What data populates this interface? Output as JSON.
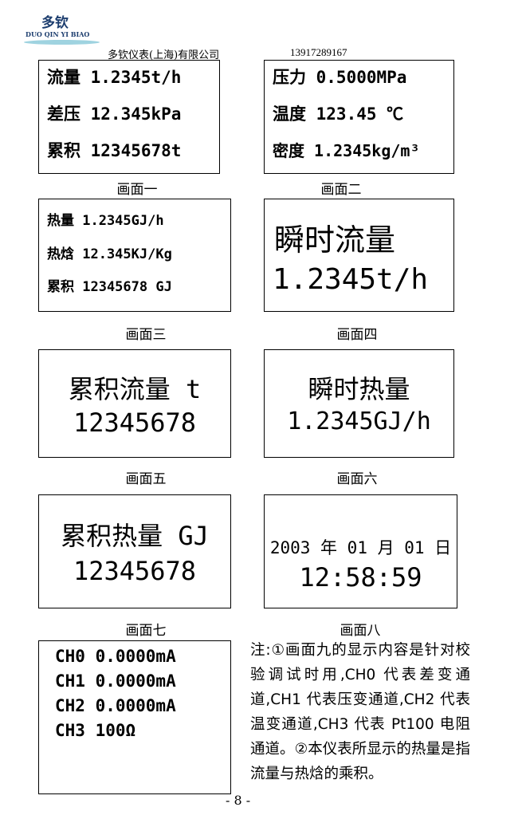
{
  "header": {
    "logo_cn": "多钦",
    "logo_en": "DUO QIN YI BIAO",
    "company": "多钦仪表(上海)有限公司",
    "phone": "13917289167"
  },
  "screens": [
    {
      "caption": "画面一",
      "lines": [
        "流量 1.2345t/h",
        "差压 12.345kPa",
        "累积 12345678t"
      ]
    },
    {
      "caption": "画面二",
      "lines": [
        "压力 0.5000MPa",
        "温度 123.45 ℃",
        "密度 1.2345kg/m³"
      ]
    },
    {
      "caption": "画面三",
      "lines": [
        "热量 1.2345GJ/h",
        "热焓 12.345KJ/Kg",
        "累积 12345678 GJ"
      ]
    },
    {
      "caption": "画面四",
      "lines": [
        "瞬时流量",
        "1.2345t/h"
      ]
    },
    {
      "caption": "画面五",
      "lines": [
        "累积流量 t",
        "12345678"
      ]
    },
    {
      "caption": "画面六",
      "lines": [
        "瞬时热量",
        "1.2345GJ/h"
      ]
    },
    {
      "caption": "画面七",
      "lines": [
        "累积热量 GJ",
        "12345678"
      ]
    },
    {
      "caption": "画面八",
      "lines": [
        "2003 年 01 月 01 日",
        "12:58:59"
      ]
    },
    {
      "lines": [
        "CH0 0.0000mA",
        "CH1 0.0000mA",
        "CH2 0.0000mA",
        "CH3 100Ω"
      ]
    }
  ],
  "note": "注:①画面九的显示内容是针对校验调试时用,CH0 代表差变通道,CH1 代表压变通道,CH2 代表温变通道,CH3 代表 Pt100 电阻通道。②本仪表所显示的热量是指流量与热焓的乘积。",
  "page_number": "- 8 -"
}
